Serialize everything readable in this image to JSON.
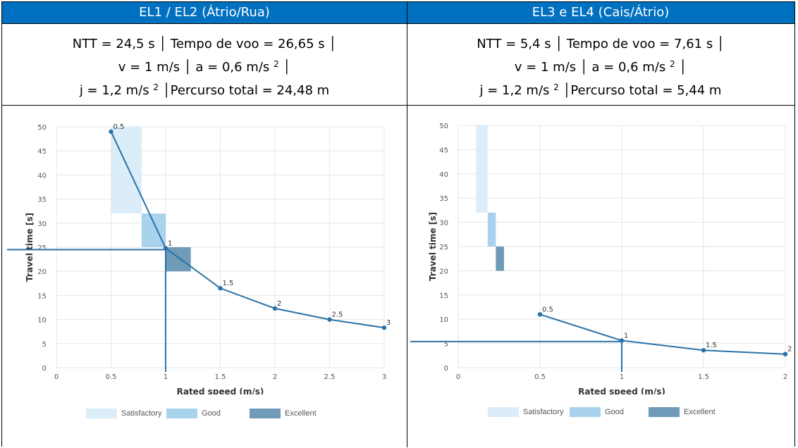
{
  "table": {
    "left": {
      "header": "EL1 / EL2 (Átrio/Rua)",
      "line1": "NTT = 24,5 s │ Tempo de voo = 26,65 s │",
      "line2_pre": "v = 1 m/s │ a = 0,6 m/s",
      "line2_sup": "2",
      "line2_post": " │",
      "line3_pre": "j = 1,2 m/s",
      "line3_sup": "2",
      "line3_post": " │Percurso total = 24,48 m"
    },
    "right": {
      "header": "EL3 e EL4 (Cais/Átrio)",
      "line1": "NTT = 5,4 s │ Tempo de voo = 7,61 s │",
      "line2_pre": "v = 1 m/s │ a = 0,6 m/s",
      "line2_sup": "2",
      "line2_post": " │",
      "line3_pre": "j = 1,2 m/s",
      "line3_sup": "2",
      "line3_post": " │Percurso total = 5,44 m"
    }
  },
  "legend": {
    "satisfactory": "Satisfactory",
    "good": "Good",
    "excellent": "Excellent"
  },
  "colors": {
    "header_bg": "#0070c0",
    "line": "#2a72a8",
    "satisfactory": "#dbedf8",
    "good": "#a9d2ec",
    "excellent": "#6f9ab8",
    "grid": "#e6e6e6"
  },
  "chart_data": [
    {
      "type": "line",
      "xlabel": "Rated speed (m/s)",
      "ylabel": "Travel time [s]",
      "xlim": [
        0,
        3
      ],
      "ylim": [
        0,
        50
      ],
      "xticks": [
        0,
        0.5,
        1,
        1.5,
        2,
        2.5,
        3
      ],
      "xtick_labels": [
        "0",
        "0.5",
        "1",
        "1.5",
        "2",
        "2.5",
        "3"
      ],
      "yticks": [
        0,
        5,
        10,
        15,
        20,
        25,
        30,
        35,
        40,
        45,
        50
      ],
      "grid": true,
      "series": [
        {
          "x": [
            0.5,
            1,
            1.5,
            2,
            2.5,
            3
          ],
          "y": [
            49,
            24.8,
            16.5,
            12.3,
            10,
            8.3
          ],
          "point_labels": [
            "0.5",
            "1",
            "1.5",
            "2",
            "2.5",
            "3"
          ]
        }
      ],
      "zones": [
        {
          "band": "satisfactory",
          "x": [
            0.5,
            0.78
          ],
          "y": [
            32,
            50
          ]
        },
        {
          "band": "good",
          "x": [
            0.78,
            1.0
          ],
          "y": [
            25,
            32
          ]
        },
        {
          "band": "excellent",
          "x": [
            1.0,
            1.23
          ],
          "y": [
            20,
            25
          ]
        }
      ],
      "reference": {
        "x": 1,
        "y": 24.5
      }
    },
    {
      "type": "line",
      "xlabel": "Rated speed (m/s)",
      "ylabel": "Travel time [s]",
      "xlim": [
        0,
        2
      ],
      "ylim": [
        0,
        50
      ],
      "xticks": [
        0,
        0.5,
        1,
        1.5,
        2
      ],
      "xtick_labels": [
        "0",
        "0.5",
        "1",
        "1.5",
        "2"
      ],
      "yticks": [
        0,
        5,
        10,
        15,
        20,
        25,
        30,
        35,
        40,
        45,
        50
      ],
      "grid": true,
      "series": [
        {
          "x": [
            0.5,
            1,
            1.5,
            2
          ],
          "y": [
            11,
            5.6,
            3.6,
            2.8
          ],
          "point_labels": [
            "0.5",
            "1",
            "1.5",
            "2"
          ]
        }
      ],
      "zones": [
        {
          "band": "satisfactory",
          "x": [
            0.11,
            0.18
          ],
          "y": [
            32,
            50
          ]
        },
        {
          "band": "good",
          "x": [
            0.18,
            0.23
          ],
          "y": [
            25,
            32
          ]
        },
        {
          "band": "excellent",
          "x": [
            0.23,
            0.28
          ],
          "y": [
            20,
            25
          ]
        }
      ],
      "reference": {
        "x": 1,
        "y": 5.4
      }
    }
  ]
}
